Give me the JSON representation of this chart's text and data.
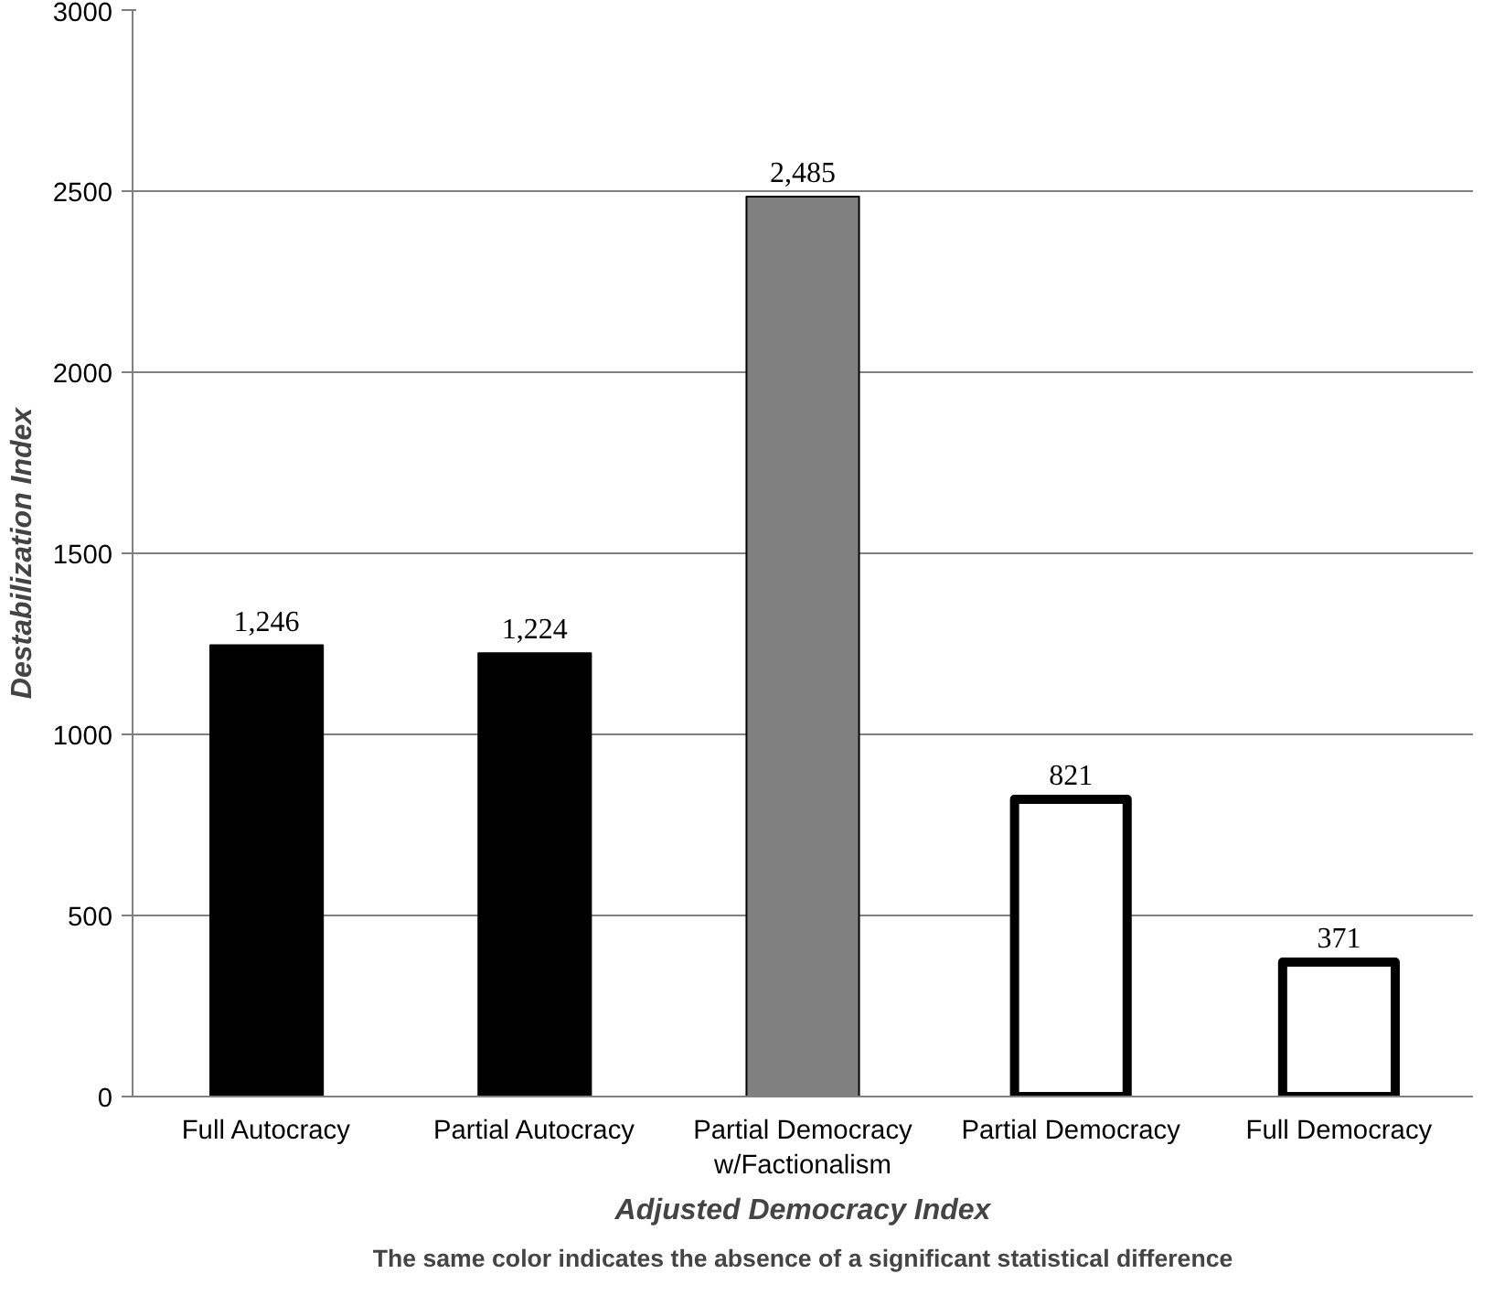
{
  "chart_data": {
    "type": "bar",
    "xlabel": "Adjusted Democracy Index",
    "ylabel": "Destabilization Index",
    "categories": [
      "Full Autocracy",
      "Partial Autocracy",
      "Partial Democracy w/Factionalism",
      "Partial Democracy",
      "Full Democracy"
    ],
    "values": [
      1246,
      1224,
      2485,
      821,
      371
    ],
    "colors": [
      "#000000",
      "#000000",
      "#808080",
      "#ffffff",
      "#ffffff"
    ],
    "value_labels": [
      "1,246",
      "1,224",
      "2,485",
      "821",
      "371"
    ],
    "ylim": [
      0,
      3000
    ],
    "yticks": [
      0,
      500,
      1000,
      1500,
      2000,
      2500,
      3000
    ],
    "grid": "y",
    "annotations": [
      "The same color indicates the absence of a significant statistical difference"
    ]
  }
}
